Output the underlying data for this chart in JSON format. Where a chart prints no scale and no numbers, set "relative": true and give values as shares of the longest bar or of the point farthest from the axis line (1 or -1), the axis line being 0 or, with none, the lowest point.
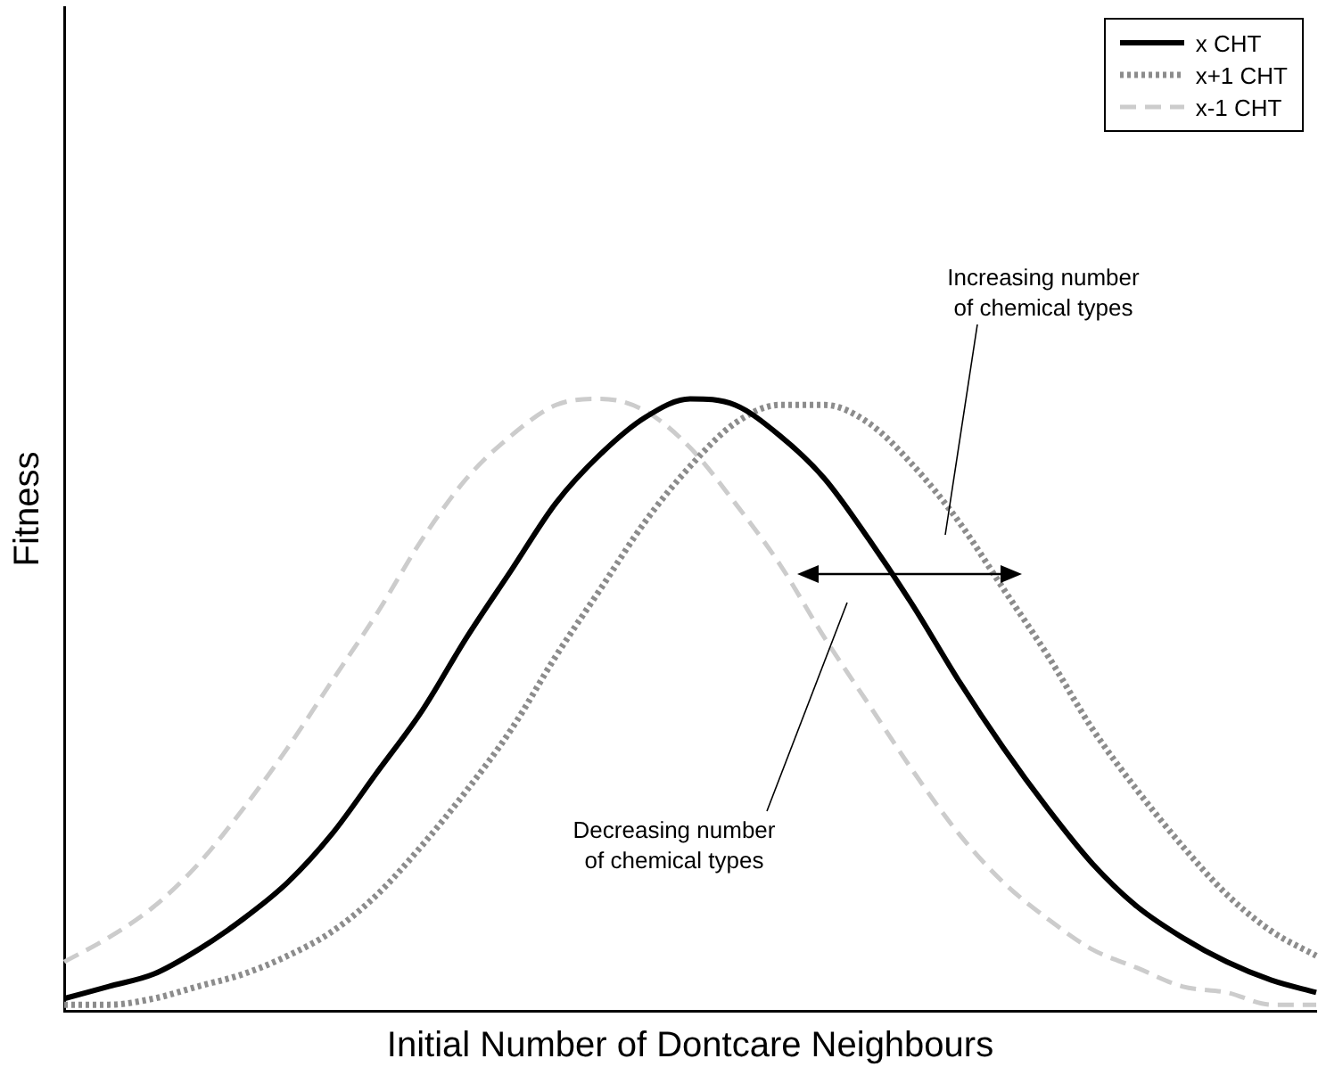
{
  "chart_data": {
    "type": "line",
    "relative": true,
    "xlabel": "Initial Number of Dontcare Neighbours",
    "ylabel": "Fitness",
    "categories": [
      null,
      null,
      null,
      null,
      null,
      null,
      null,
      null,
      null,
      null,
      null,
      null,
      null,
      null,
      null,
      null,
      null,
      null,
      null,
      null,
      null,
      null,
      null,
      null,
      null,
      null,
      null,
      null,
      null
    ],
    "series": [
      {
        "name": "x CHT",
        "color": "#000000",
        "line_style": "solid",
        "values": [
          0.02,
          0.04,
          0.06,
          0.1,
          0.15,
          0.21,
          0.29,
          0.39,
          0.49,
          0.61,
          0.72,
          0.83,
          0.91,
          0.97,
          1.0,
          0.99,
          0.94,
          0.87,
          0.77,
          0.66,
          0.54,
          0.43,
          0.33,
          0.24,
          0.17,
          0.12,
          0.08,
          0.05,
          0.03
        ]
      },
      {
        "name": "x+1 CHT",
        "color": "#8c8c8c",
        "line_style": "dotted",
        "values": [
          0.01,
          0.01,
          0.02,
          0.04,
          0.06,
          0.09,
          0.13,
          0.19,
          0.27,
          0.36,
          0.46,
          0.58,
          0.69,
          0.8,
          0.89,
          0.96,
          0.99,
          0.99,
          0.96,
          0.89,
          0.8,
          0.69,
          0.58,
          0.46,
          0.36,
          0.27,
          0.19,
          0.13,
          0.09
        ]
      },
      {
        "name": "x-1 CHT",
        "color": "#cccccc",
        "line_style": "dashed",
        "values": [
          0.08,
          0.12,
          0.17,
          0.24,
          0.33,
          0.43,
          0.54,
          0.65,
          0.77,
          0.87,
          0.94,
          0.99,
          1.0,
          0.98,
          0.92,
          0.83,
          0.73,
          0.61,
          0.5,
          0.39,
          0.29,
          0.21,
          0.15,
          0.1,
          0.07,
          0.04,
          0.03,
          0.01,
          0.01
        ]
      }
    ],
    "legend": "top right",
    "marker": "none",
    "grid": false,
    "annotations": [
      "Increasing number\nof chemical types",
      "Decreasing number\nof chemical types"
    ]
  }
}
